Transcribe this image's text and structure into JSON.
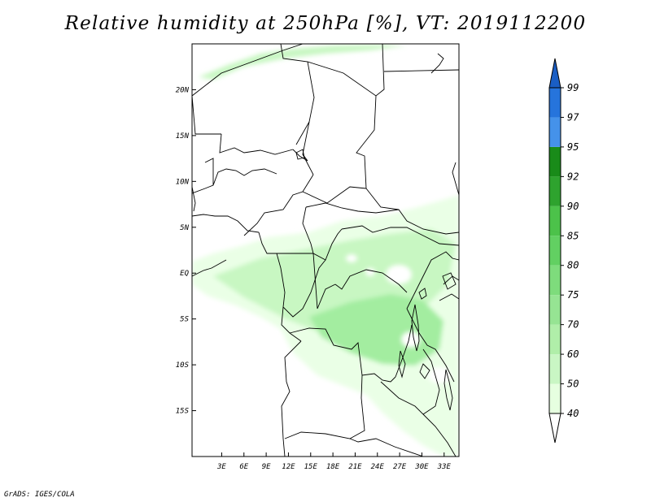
{
  "title": "Relative humidity at 250hPa [%], VT: 2019112200",
  "credit": "GrADS: IGES/COLA",
  "map": {
    "lon_range": [
      -1,
      35
    ],
    "lat_range": [
      -20,
      25
    ],
    "lon_ticks": [
      {
        "value": 3,
        "label": "3E"
      },
      {
        "value": 6,
        "label": "6E"
      },
      {
        "value": 9,
        "label": "9E"
      },
      {
        "value": 12,
        "label": "12E"
      },
      {
        "value": 15,
        "label": "15E"
      },
      {
        "value": 18,
        "label": "18E"
      },
      {
        "value": 21,
        "label": "21E"
      },
      {
        "value": 24,
        "label": "24E"
      },
      {
        "value": 27,
        "label": "27E"
      },
      {
        "value": 30,
        "label": "30E"
      },
      {
        "value": 33,
        "label": "33E"
      }
    ],
    "lat_ticks": [
      {
        "value": 20,
        "label": "20N"
      },
      {
        "value": 15,
        "label": "15N"
      },
      {
        "value": 10,
        "label": "10N"
      },
      {
        "value": 5,
        "label": "5N"
      },
      {
        "value": 0,
        "label": "EQ"
      },
      {
        "value": -5,
        "label": "5S"
      },
      {
        "value": -10,
        "label": "10S"
      },
      {
        "value": -15,
        "label": "15S"
      }
    ],
    "humidity_colors": [
      "#eaffe6",
      "#c8f7c2",
      "#a3eda0",
      "#85e08a"
    ]
  },
  "colorbar": {
    "levels": [
      "40",
      "50",
      "60",
      "70",
      "75",
      "80",
      "85",
      "90",
      "92",
      "95",
      "97",
      "99"
    ],
    "colors": [
      "#ffffff",
      "#e6ffe0",
      "#c9f6c4",
      "#b0eea9",
      "#96e493",
      "#7edc7c",
      "#62d062",
      "#4cc24a",
      "#2ea32e",
      "#198b19",
      "#4592ea",
      "#2674dc",
      "#1a5ec4"
    ]
  }
}
